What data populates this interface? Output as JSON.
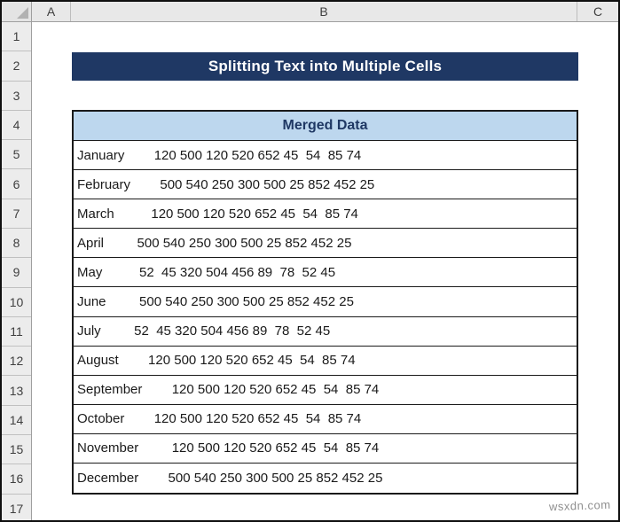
{
  "sheet": {
    "column_labels": [
      "A",
      "B",
      "C"
    ],
    "row_labels": [
      "1",
      "2",
      "3",
      "4",
      "5",
      "6",
      "7",
      "8",
      "9",
      "10",
      "11",
      "12",
      "13",
      "14",
      "15",
      "16",
      "17"
    ]
  },
  "banner": {
    "text": "Splitting Text into Multiple Cells"
  },
  "table": {
    "header": "Merged Data",
    "rows": [
      "January        120 500 120 520 652 45  54  85 74",
      "February        500 540 250 300 500 25 852 452 25",
      "March          120 500 120 520 652 45  54  85 74",
      "April         500 540 250 300 500 25 852 452 25",
      "May          52  45 320 504 456 89  78  52 45",
      "June         500 540 250 300 500 25 852 452 25",
      "July         52  45 320 504 456 89  78  52 45",
      "August        120 500 120 520 652 45  54  85 74",
      "September        120 500 120 520 652 45  54  85 74",
      "October        120 500 120 520 652 45  54  85 74",
      "November         120 500 120 520 652 45  54  85 74",
      "December        500 540 250 300 500 25 852 452 25"
    ]
  },
  "watermark": "wsxdn.com",
  "colors": {
    "banner_bg": "#1f3864",
    "banner_fg": "#ffffff",
    "table_header_bg": "#bdd7ee",
    "table_header_fg": "#1f3864",
    "chrome_bg": "#e8e8e8",
    "table_border": "#1a1a1a"
  }
}
